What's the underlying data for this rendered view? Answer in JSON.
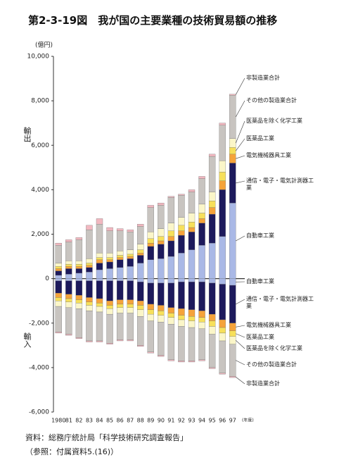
{
  "chart_data": {
    "type": "diverging-stacked-bar",
    "title": "第2-3-19図　我が国の主要業種の技術貿易額の推移",
    "unit": "(億円)",
    "export_label": "輸出",
    "import_label": "輸入",
    "x_unit": "(年度)",
    "categories": [
      "1980",
      "81",
      "82",
      "83",
      "84",
      "85",
      "86",
      "87",
      "88",
      "89",
      "90",
      "91",
      "92",
      "93",
      "94",
      "95",
      "96",
      "97"
    ],
    "ylim": [
      -6000,
      10000
    ],
    "yticks": [
      {
        "value": -6000,
        "label": "-6,000"
      },
      {
        "value": -4000,
        "label": "-4,000"
      },
      {
        "value": -2000,
        "label": "-2,000"
      },
      0,
      {
        "value": 2000,
        "label": "2,000"
      },
      {
        "value": 4000,
        "label": "4,000"
      },
      {
        "value": 6000,
        "label": "6,000"
      },
      {
        "value": 8000,
        "label": "8,000"
      },
      {
        "value": 10000,
        "label": "10,000"
      }
    ],
    "series": [
      {
        "name": "自動車工業",
        "color": "#a9b8e6",
        "values": [
          150,
          200,
          250,
          300,
          400,
          450,
          500,
          550,
          700,
          850,
          900,
          1000,
          1150,
          1300,
          1500,
          1600,
          1900,
          3400
        ],
        "import_values": [
          -100,
          -100,
          -100,
          -100,
          -100,
          -100,
          -100,
          -100,
          -150,
          -200,
          -200,
          -200,
          -150,
          -150,
          -150,
          -200,
          -250,
          -300
        ]
      },
      {
        "name": "通信・電子・電気計測器工業",
        "color": "#1d1a5c",
        "values": [
          200,
          250,
          200,
          200,
          300,
          300,
          350,
          350,
          350,
          600,
          650,
          700,
          800,
          800,
          1000,
          1300,
          2100,
          1800
        ],
        "import_values": [
          -550,
          -600,
          -650,
          -750,
          -800,
          -900,
          -850,
          -850,
          -850,
          -950,
          -1000,
          -1100,
          -1200,
          -1250,
          -1300,
          -1400,
          -1600,
          -1700
        ]
      },
      {
        "name": "電気機械器具工業",
        "color": "#f5a33a",
        "values": [
          100,
          100,
          100,
          100,
          150,
          100,
          100,
          100,
          100,
          150,
          150,
          200,
          200,
          200,
          200,
          300,
          400,
          400
        ],
        "import_values": [
          -200,
          -200,
          -200,
          -200,
          -200,
          -200,
          -200,
          -200,
          -200,
          -250,
          -250,
          -250,
          -300,
          -300,
          -300,
          -300,
          -350,
          -350
        ]
      },
      {
        "name": "医薬品工業",
        "color": "#f7e05a",
        "values": [
          100,
          100,
          100,
          100,
          100,
          100,
          100,
          100,
          150,
          200,
          200,
          250,
          250,
          250,
          250,
          300,
          400,
          300
        ],
        "import_values": [
          -150,
          -150,
          -150,
          -150,
          -150,
          -150,
          -150,
          -150,
          -200,
          -200,
          -200,
          -200,
          -200,
          -200,
          -200,
          -250,
          -250,
          -250
        ]
      },
      {
        "name": "医薬品を除く化学工業",
        "color": "#fbf6c8",
        "values": [
          150,
          150,
          150,
          200,
          200,
          200,
          200,
          200,
          250,
          300,
          350,
          350,
          350,
          400,
          400,
          400,
          500,
          400
        ],
        "import_values": [
          -250,
          -250,
          -250,
          -250,
          -250,
          -250,
          -250,
          -250,
          -300,
          -300,
          -300,
          -300,
          -300,
          -300,
          -300,
          -350,
          -350,
          -350
        ]
      },
      {
        "name": "その他の製造業合計",
        "color": "#c8c4c0",
        "values": [
          800,
          850,
          950,
          1300,
          1300,
          1000,
          900,
          800,
          800,
          1100,
          1050,
          1150,
          1000,
          950,
          1150,
          1600,
          1600,
          1950
        ],
        "import_values": [
          -1150,
          -1200,
          -1300,
          -1350,
          -1300,
          -1300,
          -1200,
          -1200,
          -1300,
          -1400,
          -1500,
          -1600,
          -1550,
          -1500,
          -1400,
          -1500,
          -1450,
          -1450
        ]
      },
      {
        "name": "非製造業合計",
        "color": "#f2b8c0",
        "values": [
          100,
          100,
          100,
          200,
          250,
          150,
          100,
          100,
          100,
          100,
          100,
          50,
          50,
          100,
          100,
          100,
          100,
          50
        ],
        "import_values": [
          -50,
          -50,
          -50,
          -50,
          -50,
          -50,
          -50,
          -50,
          -50,
          -50,
          -50,
          -50,
          -50,
          -50,
          -50,
          -50,
          -50,
          -50
        ]
      }
    ],
    "source": "資料：総務庁統計局「科学技術研究調査報告」",
    "reference": "（参照：付属資料5.(16)）"
  }
}
